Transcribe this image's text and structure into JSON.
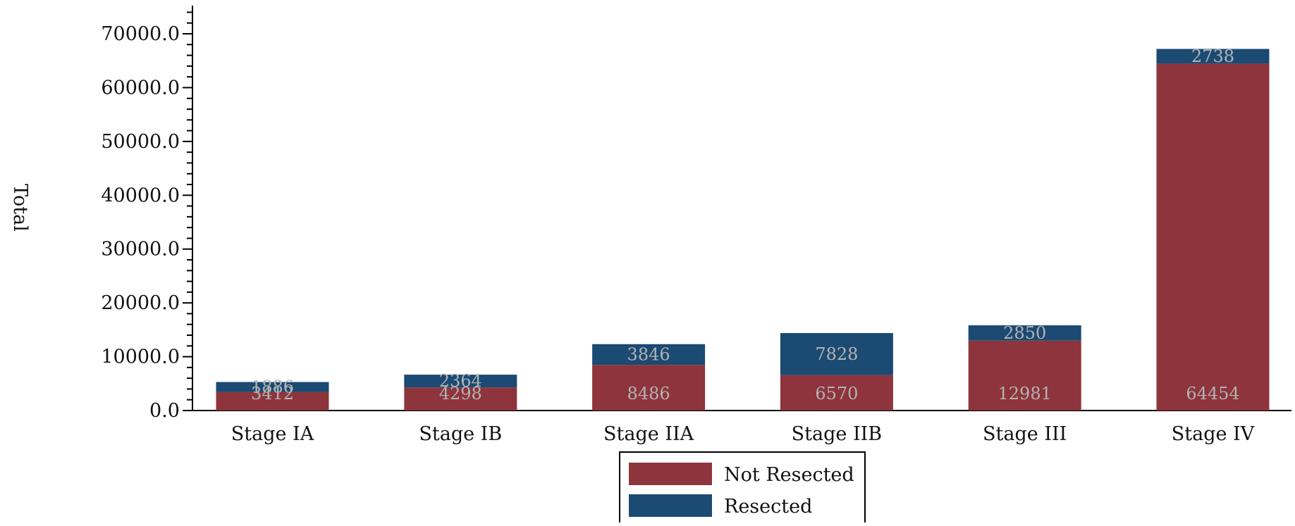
{
  "chart_data": {
    "type": "bar",
    "stacked": true,
    "categories": [
      "Stage IA",
      "Stage IB",
      "Stage IIA",
      "Stage IIB",
      "Stage III",
      "Stage IV"
    ],
    "series": [
      {
        "name": "Not Resected",
        "values": [
          3412,
          4298,
          8486,
          6570,
          12981,
          64454
        ],
        "color": "#8E343C"
      },
      {
        "name": "Resected",
        "values": [
          1886,
          2364,
          3846,
          7828,
          2850,
          2738
        ],
        "color": "#1B4A72"
      }
    ],
    "ylabel": "Total",
    "ylim": [
      0,
      75000
    ],
    "yticks": [
      "0.0",
      "10000.0",
      "20000.0",
      "30000.0",
      "40000.0",
      "50000.0",
      "60000.0",
      "70000.0"
    ],
    "grid": false,
    "legend": "bottom-center",
    "data_label_color": "#b3b3b3"
  }
}
